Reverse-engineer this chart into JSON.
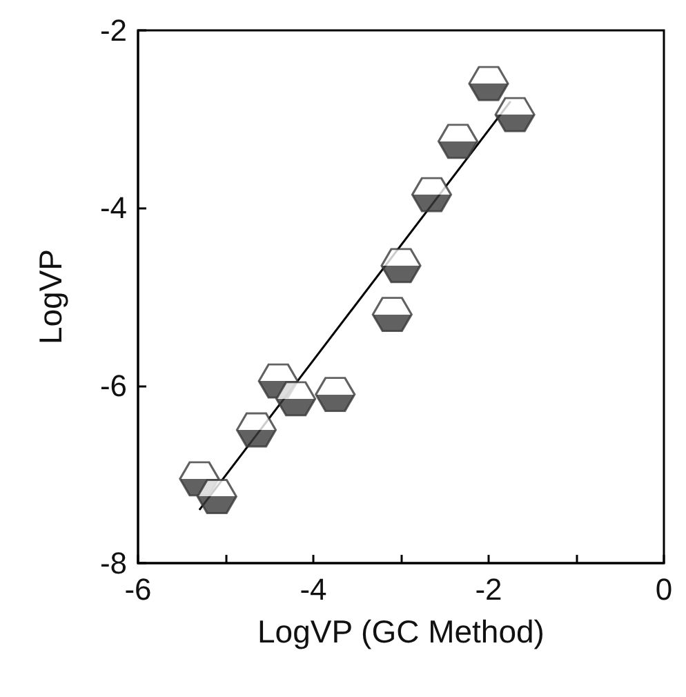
{
  "chart_data": {
    "type": "scatter",
    "xlabel": "LogVP (GC Method)",
    "ylabel": "LogVP",
    "xlim": [
      -6,
      0
    ],
    "ylim": [
      -8,
      -2
    ],
    "xticks": [
      -6,
      {
        "value": -5,
        "label": null
      },
      -4,
      {
        "value": -3,
        "label": null
      },
      -2,
      {
        "value": -1,
        "label": null
      },
      0
    ],
    "yticks": [
      -8,
      -6,
      -4,
      -2
    ],
    "grid": false,
    "series": [
      {
        "color": "#3a3a3a",
        "x": [
          -5.3,
          -5.1,
          -4.65,
          -4.4,
          -4.2,
          -3.75,
          -3.1,
          -3.0,
          -2.65,
          -2.35,
          -2.0,
          -1.7
        ],
        "values": [
          -7.05,
          -7.25,
          -6.5,
          -5.95,
          -6.15,
          -6.1,
          -5.2,
          -4.65,
          -3.85,
          -3.25,
          -2.6,
          -2.95
        ]
      },
      {
        "type": "line",
        "color": "#000000",
        "x": [
          -5.3,
          -1.75
        ],
        "values": [
          -7.4,
          -2.8
        ]
      }
    ]
  }
}
